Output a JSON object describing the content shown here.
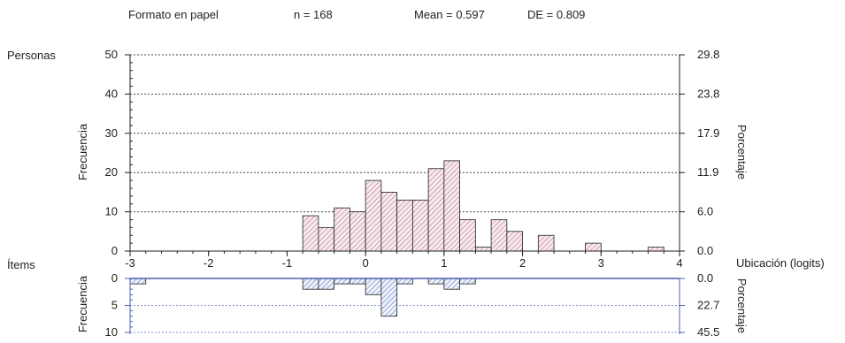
{
  "header": {
    "format": "Formato en papel",
    "n": "n = 168",
    "mean": "Mean = 0.597",
    "sd": "DE = 0.809"
  },
  "colors": {
    "persons_hatch": "#b0607a",
    "persons_fill": "#f6eaee",
    "items_hatch": "#4a68b0",
    "items_fill": "#eef1fb",
    "items_axis": "#4b5fb0",
    "grid_persons": "#444444",
    "grid_items": "#7f8fd0"
  },
  "chart_data": [
    {
      "type": "bar",
      "title": "Personas",
      "subtitle": "Formato en papel",
      "ylabel": "Frecuencia",
      "y2label": "Porcentaje",
      "xlabel": "Ubicación (logits)",
      "xlim": [
        -3,
        4
      ],
      "ylim": [
        0,
        50
      ],
      "x_ticks": [
        -3,
        -2,
        -1,
        0,
        1,
        2,
        3,
        4
      ],
      "y_ticks": [
        0,
        10,
        20,
        30,
        40,
        50
      ],
      "y2_ticks": [
        "0.0",
        "6.0",
        "11.9",
        "17.9",
        "23.8",
        "29.8"
      ],
      "grid": true,
      "bin_width": 0.2,
      "bins": [
        {
          "x": -0.7,
          "value": 9
        },
        {
          "x": -0.5,
          "value": 6
        },
        {
          "x": -0.3,
          "value": 11
        },
        {
          "x": -0.1,
          "value": 10
        },
        {
          "x": 0.1,
          "value": 18
        },
        {
          "x": 0.3,
          "value": 15
        },
        {
          "x": 0.5,
          "value": 13
        },
        {
          "x": 0.7,
          "value": 13
        },
        {
          "x": 0.9,
          "value": 21
        },
        {
          "x": 1.1,
          "value": 23
        },
        {
          "x": 1.3,
          "value": 8
        },
        {
          "x": 1.5,
          "value": 1
        },
        {
          "x": 1.7,
          "value": 8
        },
        {
          "x": 1.9,
          "value": 5
        },
        {
          "x": 2.3,
          "value": 4
        },
        {
          "x": 2.9,
          "value": 2
        },
        {
          "x": 3.7,
          "value": 1
        }
      ]
    },
    {
      "type": "bar",
      "title": "Ítems",
      "ylabel": "Frecuencia",
      "y2label": "Porcentaje",
      "xlim": [
        -3,
        4
      ],
      "ylim": [
        0,
        10
      ],
      "inverted": true,
      "y_ticks": [
        0,
        5,
        10
      ],
      "y2_ticks": [
        "0.0",
        "22.7",
        "45.5"
      ],
      "grid": true,
      "bin_width": 0.2,
      "bins": [
        {
          "x": -2.9,
          "value": 1
        },
        {
          "x": -0.7,
          "value": 2
        },
        {
          "x": -0.5,
          "value": 2
        },
        {
          "x": -0.3,
          "value": 1
        },
        {
          "x": -0.1,
          "value": 1
        },
        {
          "x": 0.1,
          "value": 3
        },
        {
          "x": 0.3,
          "value": 7
        },
        {
          "x": 0.5,
          "value": 1
        },
        {
          "x": 0.9,
          "value": 1
        },
        {
          "x": 1.1,
          "value": 2
        },
        {
          "x": 1.3,
          "value": 1
        }
      ]
    }
  ]
}
